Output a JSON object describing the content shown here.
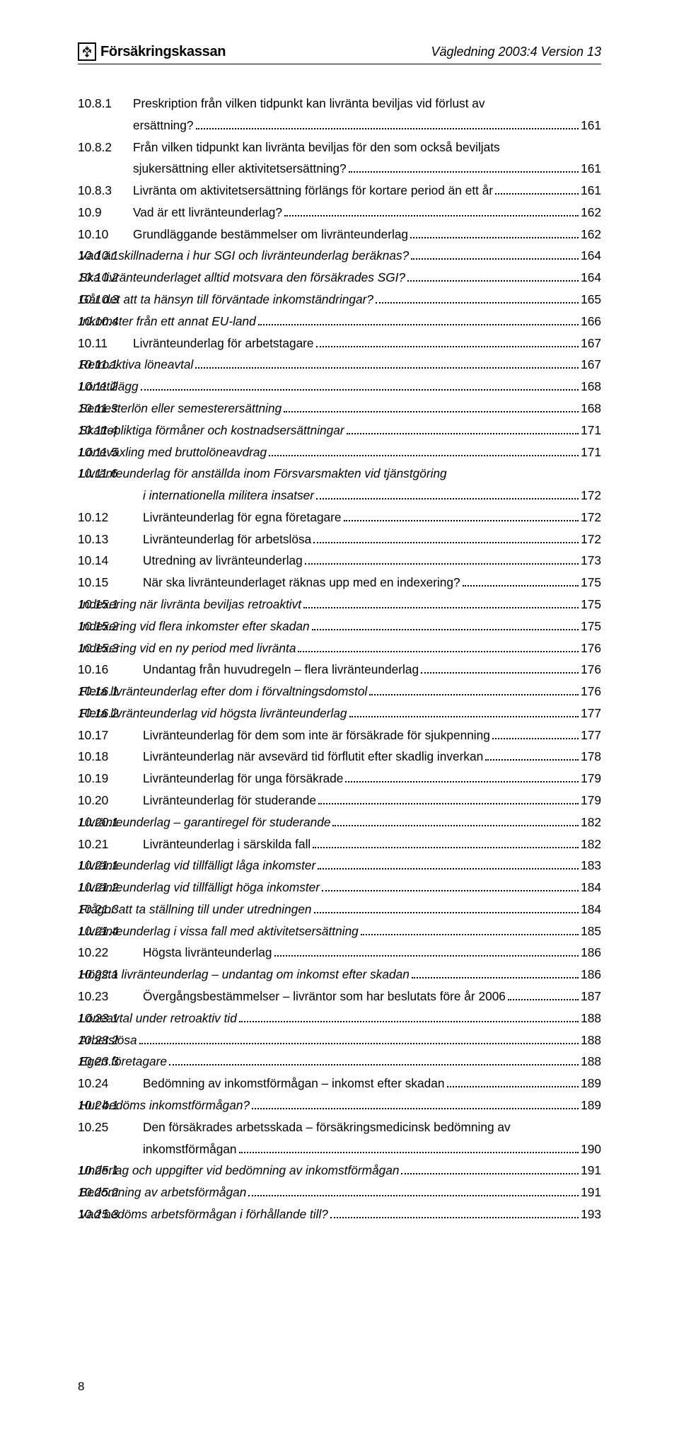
{
  "header": {
    "logo_text": "Försäkringskassan",
    "doc_ref": "Vägledning 2003:4 Version 13"
  },
  "toc": [
    {
      "num": "10.8.1",
      "numw": "w-num-2",
      "text": "Preskription från vilken tidpunkt kan livränta beviljas vid förlust av",
      "cont": "ersättning?",
      "contpad": 76,
      "page": "161",
      "italic": false
    },
    {
      "num": "10.8.2",
      "numw": "w-num-2",
      "text": "Från vilken tidpunkt kan livränta beviljas för den som också beviljats",
      "cont": "sjukersättning eller aktivitetsersättning?",
      "contpad": 76,
      "page": "161",
      "italic": false
    },
    {
      "num": "10.8.3",
      "numw": "w-num-2",
      "text": "Livränta om aktivitetsersättning förlängs för kortare period än ett år",
      "page": "161",
      "italic": false
    },
    {
      "num": "10.9",
      "numw": "w-num-2",
      "text": "Vad är ett livränteunderlag?",
      "page": "162",
      "italic": false
    },
    {
      "num": "10.10",
      "numw": "w-num-2",
      "text": "Grundläggande bestämmelser om livränteunderlag",
      "page": "162",
      "italic": false
    },
    {
      "num": "10.10.1",
      "numw": "w-num-sub",
      "text": " Vad är skillnaderna i hur SGI och livränteunderlag beräknas?",
      "page": "164",
      "italic": true
    },
    {
      "num": "10.10.2",
      "numw": "w-num-sub",
      "text": " Ska livränteunderlaget alltid motsvara den försäkrades SGI?",
      "page": "164",
      "italic": true
    },
    {
      "num": "10.10.3",
      "numw": "w-num-sub",
      "text": " Går det att ta hänsyn till förväntade inkomständringar?",
      "page": "165",
      "italic": true
    },
    {
      "num": "10.10.4",
      "numw": "w-num-sub",
      "text": " Inkomster från ett annat EU-land",
      "page": "166",
      "italic": true
    },
    {
      "num": "10.11",
      "numw": "w-num-2",
      "text": "Livränteunderlag för arbetstagare",
      "page": "167",
      "italic": false
    },
    {
      "num": "10.11.1",
      "numw": "w-num-sub",
      "text": " Retroaktiva löneavtal",
      "page": "167",
      "italic": true
    },
    {
      "num": "10.11.2",
      "numw": "w-num-sub",
      "text": " Lönetillägg",
      "page": "168",
      "italic": true
    },
    {
      "num": "10.11.3",
      "numw": "w-num-sub",
      "text": " Semesterlön eller semesterersättning",
      "page": "168",
      "italic": true
    },
    {
      "num": "10.11.4",
      "numw": "w-num-sub",
      "text": " Skattepliktiga förmåner och kostnadsersättningar",
      "page": "171",
      "italic": true
    },
    {
      "num": "10.11.5",
      "numw": "w-num-sub",
      "text": " Löneväxling med bruttolöneavdrag",
      "page": "171",
      "italic": true
    },
    {
      "num": "10.11.6",
      "numw": "w-num-sub",
      "text": " Livränteunderlag för anställda inom Försvarsmakten vid tjänstgöring",
      "cont": "i internationella militera insatser",
      "contpad": 90,
      "page": "172",
      "italic": true
    },
    {
      "num": "10.12",
      "numw": "w-num-3",
      "text": "Livränteunderlag för egna företagare",
      "page": "172",
      "italic": false
    },
    {
      "num": "10.13",
      "numw": "w-num-3",
      "text": "Livränteunderlag för arbetslösa",
      "page": "172",
      "italic": false
    },
    {
      "num": "10.14",
      "numw": "w-num-3",
      "text": "Utredning av livränteunderlag",
      "page": "173",
      "italic": false
    },
    {
      "num": "10.15",
      "numw": "w-num-3",
      "text": "När ska livränteunderlaget räknas upp med en indexering?",
      "page": "175",
      "italic": false
    },
    {
      "num": "10.15.1",
      "numw": "w-num-sub",
      "text": " Indexering när livränta beviljas retroaktivt",
      "page": "175",
      "italic": true
    },
    {
      "num": "10.15.2",
      "numw": "w-num-sub",
      "text": " Indexering vid flera inkomster efter skadan",
      "page": "175",
      "italic": true
    },
    {
      "num": "10.15.3",
      "numw": "w-num-sub",
      "text": " Indexering vid en ny period med livränta",
      "page": "176",
      "italic": true
    },
    {
      "num": "10.16",
      "numw": "w-num-3",
      "text": "Undantag från huvudregeln – flera livränteunderlag",
      "page": "176",
      "italic": false
    },
    {
      "num": "10.16.1",
      "numw": "w-num-sub",
      "text": " Flera livränteunderlag efter dom i förvaltningsdomstol",
      "page": "176",
      "italic": true
    },
    {
      "num": "10.16.2",
      "numw": "w-num-sub",
      "text": " Flera livränteunderlag vid högsta livränteunderlag",
      "page": "177",
      "italic": true
    },
    {
      "num": "10.17",
      "numw": "w-num-3",
      "text": "Livränteunderlag för dem som inte är försäkrade för sjukpenning",
      "page": "177",
      "italic": false
    },
    {
      "num": "10.18",
      "numw": "w-num-3",
      "text": "Livränteunderlag när avsevärd tid förflutit efter skadlig inverkan",
      "page": "178",
      "italic": false
    },
    {
      "num": "10.19",
      "numw": "w-num-3",
      "text": "Livränteunderlag för unga försäkrade",
      "page": "179",
      "italic": false
    },
    {
      "num": "10.20",
      "numw": "w-num-3",
      "text": "Livränteunderlag för studerande",
      "page": "179",
      "italic": false
    },
    {
      "num": "10.20.1",
      "numw": "w-num-sub",
      "text": " Livränteunderlag – garantiregel för studerande",
      "page": "182",
      "italic": true
    },
    {
      "num": "10.21",
      "numw": "w-num-3",
      "text": "Livränteunderlag i särskilda fall",
      "page": "182",
      "italic": false
    },
    {
      "num": "10.21.1",
      "numw": "w-num-sub",
      "text": " Livränteunderlag vid tillfälligt låga inkomster",
      "page": "183",
      "italic": true
    },
    {
      "num": "10.21.2",
      "numw": "w-num-sub",
      "text": " Livränteunderlag vid tillfälligt höga inkomster",
      "page": "184",
      "italic": true
    },
    {
      "num": "10.21.3",
      "numw": "w-num-sub",
      "text": " Frågor att ta ställning till under utredningen",
      "page": "184",
      "italic": true
    },
    {
      "num": "10.21.4",
      "numw": "w-num-sub",
      "text": " Livränteunderlag i vissa fall med aktivitetsersättning",
      "page": "185",
      "italic": true
    },
    {
      "num": "10.22",
      "numw": "w-num-3",
      "text": "Högsta livränteunderlag",
      "page": "186",
      "italic": false
    },
    {
      "num": "10.22.1",
      "numw": "w-num-sub",
      "text": " Högsta livränteunderlag – undantag om inkomst efter skadan",
      "page": "186",
      "italic": true
    },
    {
      "num": "10.23",
      "numw": "w-num-3",
      "text": "Övergångsbestämmelser – livräntor som har beslutats före år 2006",
      "page": "187",
      "italic": false
    },
    {
      "num": "10.23.1",
      "numw": "w-num-sub",
      "text": " Löneavtal under retroaktiv tid",
      "page": "188",
      "italic": true
    },
    {
      "num": "10.23.2",
      "numw": "w-num-sub",
      "text": " Arbetslösa",
      "page": "188",
      "italic": true
    },
    {
      "num": "10.23.3",
      "numw": "w-num-sub",
      "text": " Egen företagare",
      "page": "188",
      "italic": true
    },
    {
      "num": "10.24",
      "numw": "w-num-3",
      "text": "Bedömning av inkomstförmågan – inkomst efter skadan",
      "page": "189",
      "italic": false
    },
    {
      "num": "10.24.1",
      "numw": "w-num-sub",
      "text": " Hur bedöms inkomstförmågan?",
      "page": "189",
      "italic": true
    },
    {
      "num": "10.25",
      "numw": "w-num-3",
      "text": "Den försäkrades arbetsskada – försäkringsmedicinsk bedömning av",
      "cont": "inkomstförmågan",
      "contpad": 90,
      "page": "190",
      "italic": false
    },
    {
      "num": "10.25.1",
      "numw": "w-num-sub",
      "text": " Underlag och uppgifter vid bedömning av inkomstförmågan",
      "page": "191",
      "italic": true
    },
    {
      "num": "10.25.2",
      "numw": "w-num-sub",
      "text": " Bedömning av arbetsförmågan",
      "page": "191",
      "italic": true
    },
    {
      "num": "10.25.3",
      "numw": "w-num-sub",
      "text": " Vad bedöms arbetsförmågan i förhållande till?",
      "page": "193",
      "italic": true
    }
  ],
  "footer_page": "8"
}
